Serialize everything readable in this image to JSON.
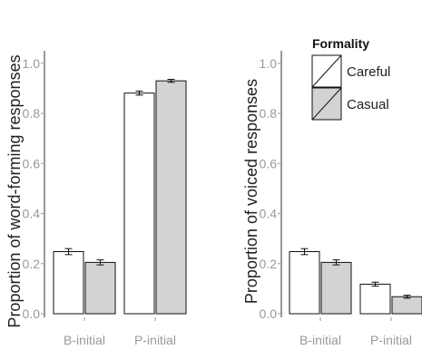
{
  "chart_data": [
    {
      "type": "bar",
      "categories": [
        "B-initial",
        "P-initial"
      ],
      "series": [
        {
          "name": "Careful",
          "values": [
            0.248,
            0.881
          ],
          "errors": [
            0.012,
            0.008
          ],
          "color": "#ffffff"
        },
        {
          "name": "Casual",
          "values": [
            0.205,
            0.93
          ],
          "errors": [
            0.01,
            0.006
          ],
          "color": "#d3d3d3"
        }
      ],
      "ylabel": "Proportion of word-forming responses",
      "xlabel": "",
      "ylim": [
        0,
        1.05
      ],
      "yticks": [
        "0.0",
        "0.2",
        "0.4",
        "0.6",
        "0.8",
        "1.0"
      ],
      "yticklabels": [
        "0.0",
        "0.2",
        "0.4",
        "0.6",
        "0.8",
        "1.0"
      ],
      "grid": false
    },
    {
      "type": "bar",
      "categories": [
        "B-initial",
        "P-initial"
      ],
      "series": [
        {
          "name": "Careful",
          "values": [
            0.248,
            0.118
          ],
          "errors": [
            0.012,
            0.008
          ],
          "color": "#ffffff"
        },
        {
          "name": "Casual",
          "values": [
            0.205,
            0.068
          ],
          "errors": [
            0.01,
            0.006
          ],
          "color": "#d3d3d3"
        }
      ],
      "ylabel": "Proportion of voiced responses",
      "xlabel": "",
      "ylim": [
        0,
        1.05
      ],
      "yticks": [
        "0.0",
        "0.2",
        "0.4",
        "0.6",
        "0.8",
        "1.0"
      ],
      "yticklabels": [
        "0.0",
        "0.2",
        "0.4",
        "0.6",
        "0.8",
        "1.0"
      ],
      "grid": false
    }
  ],
  "legend": {
    "title": "Formality",
    "items": [
      {
        "label": "Careful",
        "fill": "#ffffff"
      },
      {
        "label": "Casual",
        "fill": "#d3d3d3"
      }
    ],
    "placement": "top-right"
  }
}
